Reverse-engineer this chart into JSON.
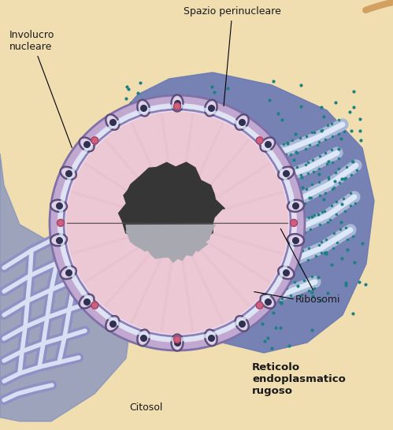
{
  "labels": {
    "spazio_perinucleare": "Spazio perinucleare",
    "involucro_nucleare": "Involucro\nnucleare",
    "ribosomi": "Ribosomi",
    "reticolo": "Reticolo\nendoplasmatico\nrugoso",
    "citosol": "Citosol"
  },
  "colors": {
    "cell_bg": "#f0deb0",
    "cell_border": "#d4a060",
    "nucleus_outer": "#c0a8d0",
    "nucleus_inner_bg": "#ecc8d4",
    "envelope_space": "#e8ddf0",
    "nucleolus_dark": "#383838",
    "nucleolus_gray": "#a0a0a8",
    "rough_er_blue": "#6878b4",
    "rough_er_dark": "#4858a0",
    "er_lumen_outer": "#aab8d8",
    "er_lumen_inner": "#dce8f8",
    "smooth_er_fill": "#8090c0",
    "smooth_er_lumen": "#d8e0f4",
    "ribosome_color": "#1a8080",
    "pore_dark": "#303050",
    "pore_ring": "#e0d0e8",
    "pink_connector": "#c06080",
    "line_color": "#404040"
  },
  "figure_size": [
    4.99,
    5.46
  ],
  "dpi": 100
}
